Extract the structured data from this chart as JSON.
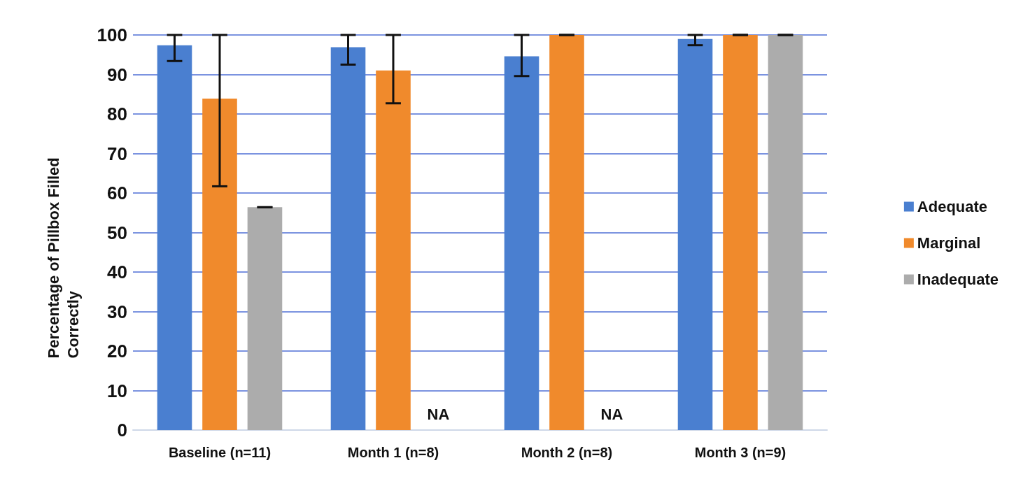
{
  "chart_data": {
    "type": "bar",
    "categories": [
      "Baseline (n=11)",
      "Month 1 (n=8)",
      "Month 2 (n=8)",
      "Month 3 (n=9)"
    ],
    "ylabel": "Percentage of Pillbox Filled Correctly",
    "series": [
      {
        "name": "Adequate",
        "color": "#4a7fd0",
        "values": [
          97.4,
          96.9,
          94.6,
          99.0
        ],
        "errors": [
          [
            93.4,
            100
          ],
          [
            92.5,
            100
          ],
          [
            89.6,
            100
          ],
          [
            97.4,
            100
          ]
        ]
      },
      {
        "name": "Marginal",
        "color": "#f08a2c",
        "values": [
          83.9,
          91.0,
          100,
          100
        ],
        "errors": [
          [
            61.7,
            100
          ],
          [
            82.7,
            100
          ],
          [
            100,
            100
          ],
          [
            100,
            100
          ]
        ]
      },
      {
        "name": "Inadequate",
        "color": "#acacac",
        "values": [
          56.4,
          null,
          null,
          100
        ],
        "errors": [
          [
            56.4,
            56.4
          ],
          null,
          null,
          [
            100,
            100
          ]
        ]
      }
    ],
    "annotations": [
      "NA",
      "NA"
    ],
    "ylim": [
      0,
      100
    ],
    "yticks": [
      0,
      10,
      20,
      30,
      40,
      50,
      60,
      70,
      80,
      90,
      100
    ],
    "grid": "y",
    "legend": "right"
  }
}
